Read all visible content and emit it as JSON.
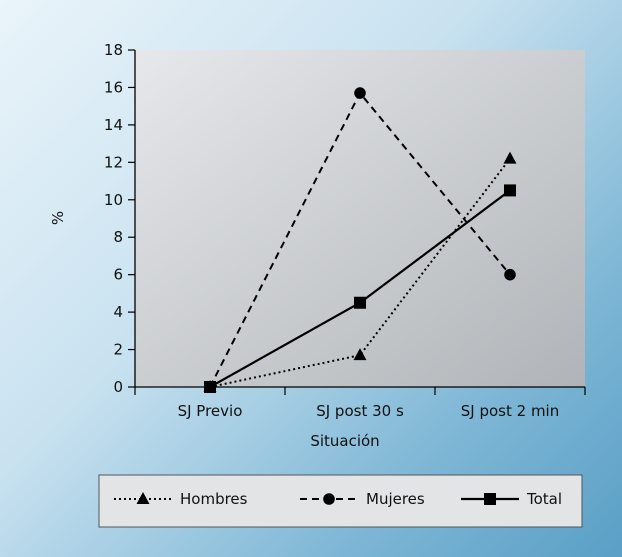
{
  "chart_data": {
    "type": "line",
    "categories": [
      "SJ Previo",
      "SJ post 30 s",
      "SJ post 2 min"
    ],
    "xlabel": "Situación",
    "ylabel": "%",
    "ylim": [
      0,
      18
    ],
    "yticks": [
      "0",
      "2",
      "4",
      "6",
      "8",
      "10",
      "12",
      "14",
      "16",
      "18"
    ],
    "grid": false,
    "legend_position": "bottom",
    "series": [
      {
        "name": "Hombres",
        "values": [
          0,
          1.7,
          12.2
        ],
        "marker": "triangle",
        "dash": "dotted",
        "color": "#000000"
      },
      {
        "name": "Mujeres",
        "values": [
          0,
          15.7,
          6.0
        ],
        "marker": "circle",
        "dash": "dashed",
        "color": "#000000"
      },
      {
        "name": "Total",
        "values": [
          0,
          4.5,
          10.5
        ],
        "marker": "square",
        "dash": "solid",
        "color": "#000000"
      }
    ]
  },
  "colors": {
    "plot_bg_light": "#e4e6e8",
    "plot_bg_dark": "#b3b6ba",
    "frame_light": "#eaf4fa",
    "frame_dark": "#5a9fc6"
  }
}
